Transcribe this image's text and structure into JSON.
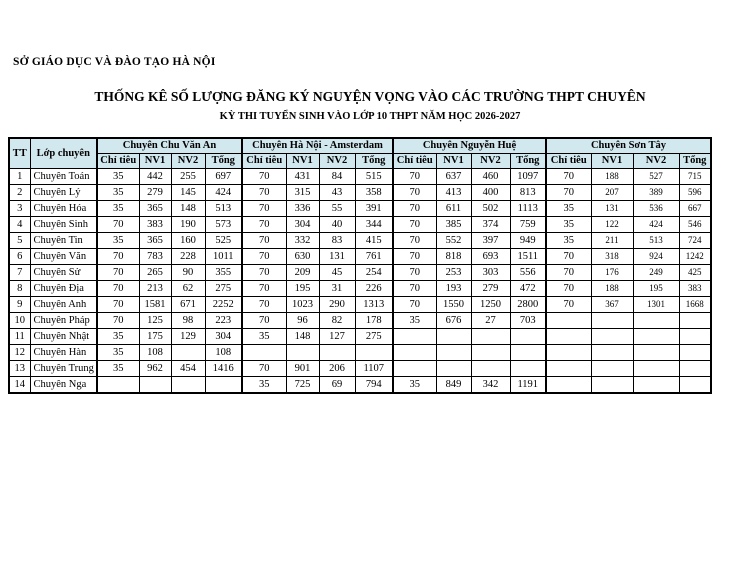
{
  "document": {
    "agency": "SỞ GIÁO DỤC VÀ ĐÀO TẠO HÀ NỘI",
    "title": "THỐNG KÊ SỐ LƯỢNG ĐĂNG KÝ NGUYỆN VỌNG VÀO CÁC TRƯỜNG THPT CHUYÊN",
    "subtitle": "KỲ THI TUYỂN SINH VÀO LỚP 10 THPT NĂM HỌC 2026-2027"
  },
  "table": {
    "corner": {
      "tt": "TT",
      "class_col": "Lớp chuyên"
    },
    "groups": [
      "Chuyên Chu Văn An",
      "Chuyên Hà Nội - Amsterdam",
      "Chuyên Nguyễn Huệ",
      "Chuyên Sơn Tây"
    ],
    "sub_headers": [
      "Chỉ tiêu",
      "NV1",
      "NV2",
      "Tổng"
    ],
    "rows": [
      {
        "tt": "1",
        "name": "Chuyên Toán",
        "cells": [
          "35",
          "442",
          "255",
          "697",
          "70",
          "431",
          "84",
          "515",
          "70",
          "637",
          "460",
          "1097",
          "70",
          "188",
          "527",
          "715"
        ]
      },
      {
        "tt": "2",
        "name": "Chuyên Lý",
        "cells": [
          "35",
          "279",
          "145",
          "424",
          "70",
          "315",
          "43",
          "358",
          "70",
          "413",
          "400",
          "813",
          "70",
          "207",
          "389",
          "596"
        ]
      },
      {
        "tt": "3",
        "name": "Chuyên Hóa",
        "cells": [
          "35",
          "365",
          "148",
          "513",
          "70",
          "336",
          "55",
          "391",
          "70",
          "611",
          "502",
          "1113",
          "35",
          "131",
          "536",
          "667"
        ]
      },
      {
        "tt": "4",
        "name": "Chuyên Sinh",
        "cells": [
          "70",
          "383",
          "190",
          "573",
          "70",
          "304",
          "40",
          "344",
          "70",
          "385",
          "374",
          "759",
          "35",
          "122",
          "424",
          "546"
        ]
      },
      {
        "tt": "5",
        "name": "Chuyên Tin",
        "cells": [
          "35",
          "365",
          "160",
          "525",
          "70",
          "332",
          "83",
          "415",
          "70",
          "552",
          "397",
          "949",
          "35",
          "211",
          "513",
          "724"
        ]
      },
      {
        "tt": "6",
        "name": "Chuyên Văn",
        "cells": [
          "70",
          "783",
          "228",
          "1011",
          "70",
          "630",
          "131",
          "761",
          "70",
          "818",
          "693",
          "1511",
          "70",
          "318",
          "924",
          "1242"
        ]
      },
      {
        "tt": "7",
        "name": "Chuyên Sử",
        "cells": [
          "70",
          "265",
          "90",
          "355",
          "70",
          "209",
          "45",
          "254",
          "70",
          "253",
          "303",
          "556",
          "70",
          "176",
          "249",
          "425"
        ]
      },
      {
        "tt": "8",
        "name": "Chuyên Địa",
        "cells": [
          "70",
          "213",
          "62",
          "275",
          "70",
          "195",
          "31",
          "226",
          "70",
          "193",
          "279",
          "472",
          "70",
          "188",
          "195",
          "383"
        ]
      },
      {
        "tt": "9",
        "name": "Chuyên Anh",
        "cells": [
          "70",
          "1581",
          "671",
          "2252",
          "70",
          "1023",
          "290",
          "1313",
          "70",
          "1550",
          "1250",
          "2800",
          "70",
          "367",
          "1301",
          "1668"
        ]
      },
      {
        "tt": "10",
        "name": "Chuyên Pháp",
        "cells": [
          "70",
          "125",
          "98",
          "223",
          "70",
          "96",
          "82",
          "178",
          "35",
          "676",
          "27",
          "703",
          "",
          "",
          "",
          ""
        ]
      },
      {
        "tt": "11",
        "name": "Chuyên Nhật",
        "cells": [
          "35",
          "175",
          "129",
          "304",
          "35",
          "148",
          "127",
          "275",
          "",
          "",
          "",
          "",
          "",
          "",
          "",
          ""
        ]
      },
      {
        "tt": "12",
        "name": "Chuyên Hàn",
        "cells": [
          "35",
          "108",
          "",
          "108",
          "",
          "",
          "",
          "",
          "",
          "",
          "",
          "",
          "",
          "",
          "",
          ""
        ]
      },
      {
        "tt": "13",
        "name": "Chuyên Trung",
        "cells": [
          "35",
          "962",
          "454",
          "1416",
          "70",
          "901",
          "206",
          "1107",
          "",
          "",
          "",
          "",
          "",
          "",
          "",
          ""
        ]
      },
      {
        "tt": "14",
        "name": "Chuyên Nga",
        "cells": [
          "",
          "",
          "",
          "",
          "35",
          "725",
          "69",
          "794",
          "35",
          "849",
          "342",
          "1191",
          "",
          "",
          "",
          ""
        ]
      }
    ]
  },
  "colors": {
    "page_bg": "#ffffff",
    "header_bg": "#d2e8ef",
    "border": "#000000"
  }
}
